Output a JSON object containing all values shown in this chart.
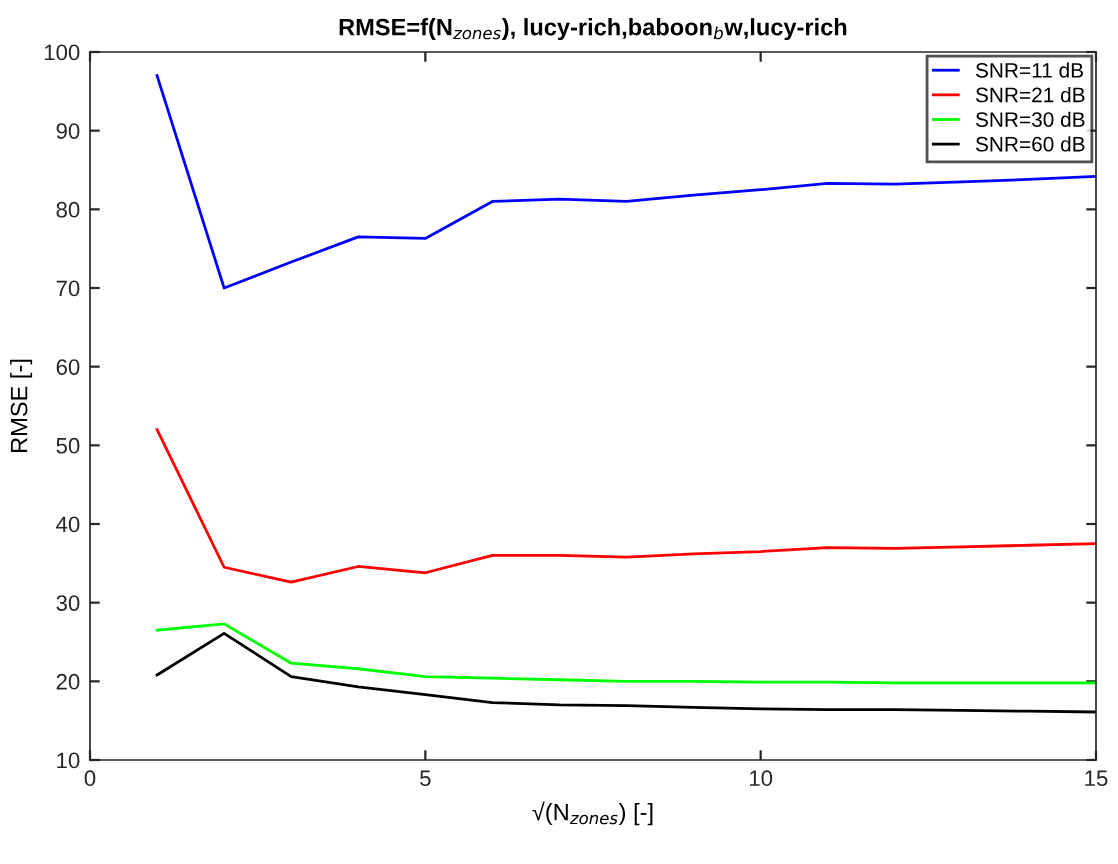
{
  "chart_data": {
    "type": "line",
    "title": "RMSE=f(N$_{zones}$), lucy-rich,baboon$_{b}$w,lucy-rich",
    "xlabel": "√(N$_{zones}$) [-]",
    "ylabel": "RMSE [-]",
    "x": [
      1,
      2,
      3,
      4,
      5,
      6,
      7,
      8,
      9,
      10,
      11,
      12,
      13,
      14,
      15
    ],
    "series": [
      {
        "name": "SNR=11 dB",
        "color": "#0000ff",
        "values": [
          97,
          70,
          73.3,
          76.5,
          76.3,
          81,
          81.3,
          81,
          81.8,
          82.5,
          83.3,
          83.2,
          83.5,
          83.8,
          84.2
        ]
      },
      {
        "name": "SNR=21 dB",
        "color": "#ff0000",
        "values": [
          52,
          34.5,
          32.6,
          34.6,
          33.8,
          36,
          36,
          35.8,
          36.2,
          36.5,
          37,
          36.9,
          37.1,
          37.3,
          37.5
        ]
      },
      {
        "name": "SNR=30 dB",
        "color": "#00ff00",
        "values": [
          26.5,
          27.3,
          22.3,
          21.6,
          20.6,
          20.4,
          20.2,
          20,
          20,
          19.9,
          19.9,
          19.8,
          19.8,
          19.8,
          19.8
        ]
      },
      {
        "name": "SNR=60 dB",
        "color": "#000000",
        "values": [
          20.8,
          26.1,
          20.6,
          19.3,
          18.3,
          17.3,
          17,
          16.9,
          16.7,
          16.5,
          16.4,
          16.4,
          16.3,
          16.2,
          16.1
        ]
      }
    ],
    "xlim": [
      0,
      15
    ],
    "ylim": [
      10,
      100
    ],
    "xticks": [
      0,
      5,
      10,
      15
    ],
    "yticks": [
      10,
      20,
      30,
      40,
      50,
      60,
      70,
      80,
      90,
      100
    ],
    "grid": false,
    "legend": "top right",
    "marker": "none",
    "line_style": "solid"
  }
}
